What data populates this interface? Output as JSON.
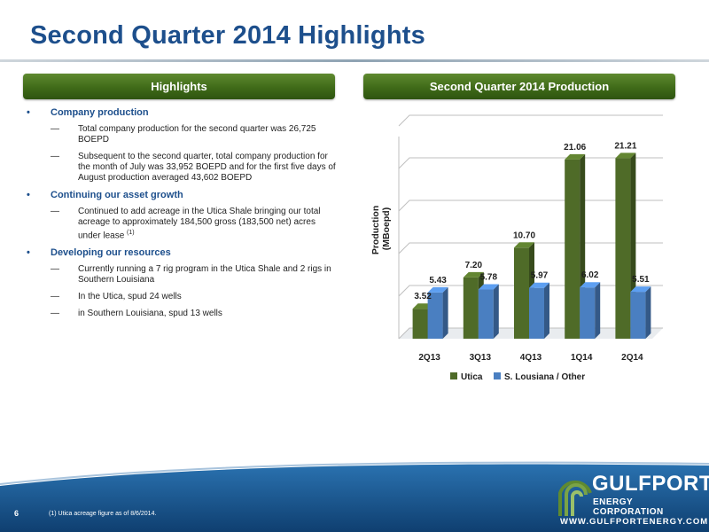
{
  "slide": {
    "title": "Second Quarter 2014 Highlights",
    "page_number": "6",
    "footnote": "(1) Utica acreage figure as of 8/6/2014."
  },
  "highlights": {
    "header": "Highlights",
    "bullets": [
      {
        "label": "Company production",
        "subs": [
          "Total company production for the second quarter was 26,725 BOEPD",
          "Subsequent to the second quarter, total company production for the month of July was 33,952 BOEPD and for the first five days of August production averaged 43,602 BOEPD"
        ]
      },
      {
        "label": "Continuing our asset growth",
        "subs": [
          "Continued to add acreage in the Utica Shale bringing our total acreage to approximately 184,500 gross (183,500 net) acres under lease"
        ]
      },
      {
        "label": "Developing our resources",
        "subs": [
          "Currently running a 7 rig program in the Utica Shale and 2 rigs in Southern Louisiana",
          "In the Utica, spud 24 wells",
          "in Southern Louisiana, spud 13 wells"
        ]
      }
    ],
    "lease_footnote_mark": "(1)"
  },
  "production_panel": {
    "header": "Second Quarter 2014 Production"
  },
  "chart_data": {
    "type": "bar",
    "style": "3d-clustered",
    "categories": [
      "2Q13",
      "3Q13",
      "4Q13",
      "1Q14",
      "2Q14"
    ],
    "series": [
      {
        "name": "Utica",
        "color": "#4f6b28",
        "values": [
          3.52,
          7.2,
          10.7,
          21.06,
          21.21
        ],
        "labels": [
          "3.52",
          "7.20",
          "10.70",
          "21.06",
          "21.21"
        ]
      },
      {
        "name": "S. Lousiana / Other",
        "color": "#4a7fc1",
        "values": [
          5.43,
          5.78,
          5.97,
          6.02,
          5.51
        ],
        "labels": [
          "5.43",
          "5.78",
          "5.97",
          "6.02",
          "5.51"
        ]
      }
    ],
    "ylabel_line1": "Production",
    "ylabel_line2": "(MBoepd)",
    "ylim": [
      0,
      25
    ],
    "grid": true,
    "legend": "bottom"
  },
  "logo": {
    "name": "GULFPORT",
    "subtitle": "ENERGY CORPORATION",
    "url": "WWW.GULFPORTENERGY.COM"
  },
  "colors": {
    "title_blue": "#1d4f8c",
    "header_green": "#3f6a18",
    "footer_blue": "#1a5a95"
  }
}
